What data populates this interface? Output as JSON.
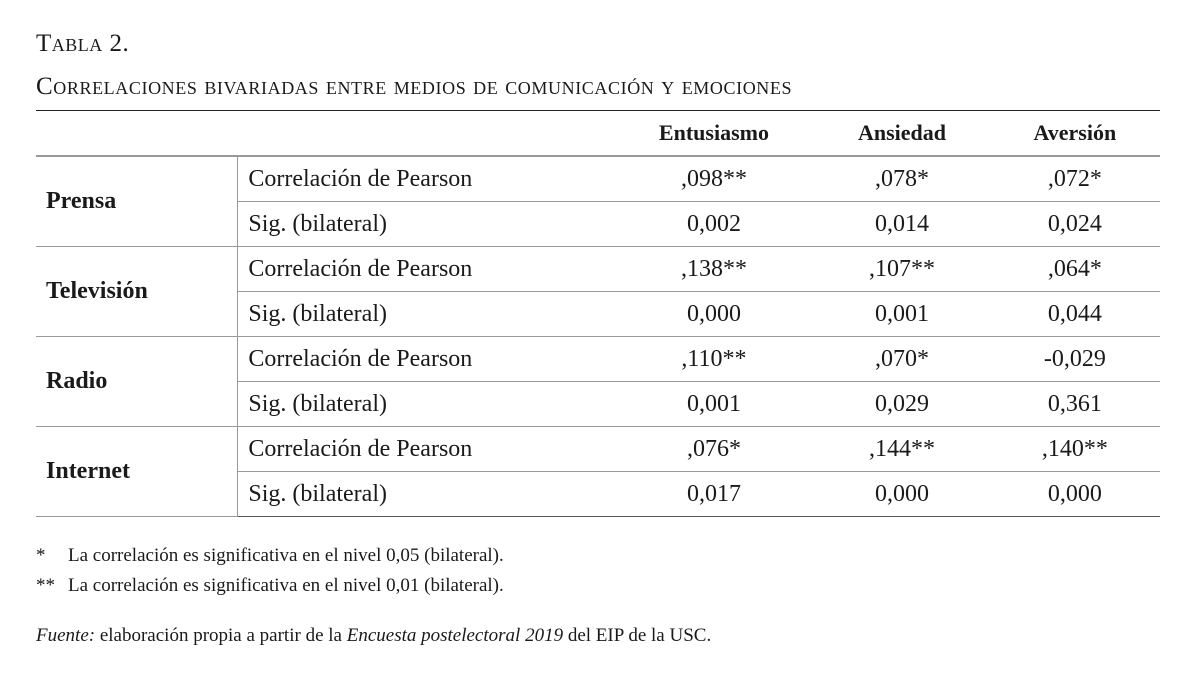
{
  "title": "Tabla 2.",
  "subtitle": "Correlaciones bivariadas entre medios de comunicación y emociones",
  "columns": [
    "Entusiasmo",
    "Ansiedad",
    "Aversión"
  ],
  "rows": [
    {
      "group": "Prensa",
      "corr_label": "Correlación de Pearson",
      "corr": [
        ",098**",
        ",078*",
        ",072*"
      ],
      "sig_label": "Sig. (bilateral)",
      "sig": [
        "0,002",
        "0,014",
        "0,024"
      ]
    },
    {
      "group": "Televisión",
      "corr_label": "Correlación de Pearson",
      "corr": [
        ",138**",
        ",107**",
        ",064*"
      ],
      "sig_label": "Sig. (bilateral)",
      "sig": [
        "0,000",
        "0,001",
        "0,044"
      ]
    },
    {
      "group": "Radio",
      "corr_label": "Correlación de Pearson",
      "corr": [
        ",110**",
        ",070*",
        "-0,029"
      ],
      "sig_label": "Sig. (bilateral)",
      "sig": [
        "0,001",
        "0,029",
        "0,361"
      ]
    },
    {
      "group": "Internet",
      "corr_label": "Correlación de Pearson",
      "corr": [
        ",076*",
        ",144**",
        ",140**"
      ],
      "sig_label": "Sig. (bilateral)",
      "sig": [
        "0,017",
        "0,000",
        "0,000"
      ]
    }
  ],
  "footnotes": [
    {
      "mark": "*",
      "text": "La correlación es significativa en el nivel 0,05 (bilateral)."
    },
    {
      "mark": "**",
      "text": "La correlación es significativa en el nivel 0,01 (bilateral)."
    }
  ],
  "source": {
    "label": "Fuente:",
    "text1": " elaboración propia a partir de la ",
    "survey": "Encuesta postelectoral 2019",
    "text2": " del EIP de la USC."
  }
}
